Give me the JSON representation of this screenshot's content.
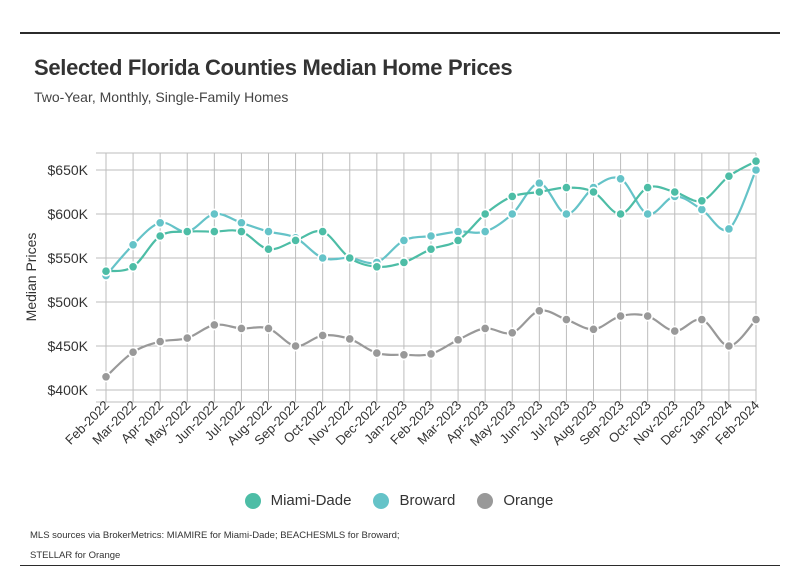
{
  "header": {
    "title": "Selected Florida Counties Median Home Prices",
    "subtitle": "Two-Year, Monthly, Single-Family Homes"
  },
  "footer": {
    "source_line1": "MLS sources via BrokerMetrics: MIAMIRE for Miami-Dade; BEACHESMLS for Broward;",
    "source_line2": "STELLAR for Orange"
  },
  "chart_data": {
    "type": "line",
    "title": "Selected Florida Counties Median Home Prices",
    "subtitle": "Two-Year, Monthly, Single-Family Homes",
    "xlabel": "",
    "ylabel": "Median Prices",
    "ylim": [
      400,
      650
    ],
    "yticks": [
      400,
      450,
      500,
      550,
      600,
      650
    ],
    "ytick_labels": [
      "$400K",
      "$450K",
      "$500K",
      "$550K",
      "$600K",
      "$650K"
    ],
    "grid": true,
    "legend_position": "bottom",
    "categories": [
      "Feb-2022",
      "Mar-2022",
      "Apr-2022",
      "May-2022",
      "Jun-2022",
      "Jul-2022",
      "Aug-2022",
      "Sep-2022",
      "Oct-2022",
      "Nov-2022",
      "Dec-2022",
      "Jan-2023",
      "Feb-2023",
      "Mar-2023",
      "Apr-2023",
      "May-2023",
      "Jun-2023",
      "Jul-2023",
      "Aug-2023",
      "Sep-2023",
      "Oct-2023",
      "Nov-2023",
      "Dec-2023",
      "Jan-2024",
      "Feb-2024"
    ],
    "series": [
      {
        "name": "Miami-Dade",
        "color": "#4dbda6",
        "values": [
          535,
          540,
          575,
          580,
          580,
          580,
          560,
          570,
          580,
          550,
          540,
          545,
          560,
          570,
          600,
          620,
          625,
          630,
          625,
          600,
          630,
          625,
          615,
          643,
          660
        ]
      },
      {
        "name": "Broward",
        "color": "#65c3c8",
        "values": [
          530,
          565,
          590,
          580,
          600,
          590,
          580,
          573,
          550,
          550,
          545,
          570,
          575,
          580,
          580,
          600,
          635,
          600,
          630,
          640,
          600,
          620,
          605,
          583,
          650
        ]
      },
      {
        "name": "Orange",
        "color": "#999999",
        "values": [
          415,
          443,
          455,
          459,
          474,
          470,
          470,
          450,
          462,
          458,
          442,
          440,
          441,
          457,
          470,
          465,
          490,
          480,
          469,
          484,
          484,
          467,
          480,
          450,
          480
        ]
      }
    ]
  }
}
